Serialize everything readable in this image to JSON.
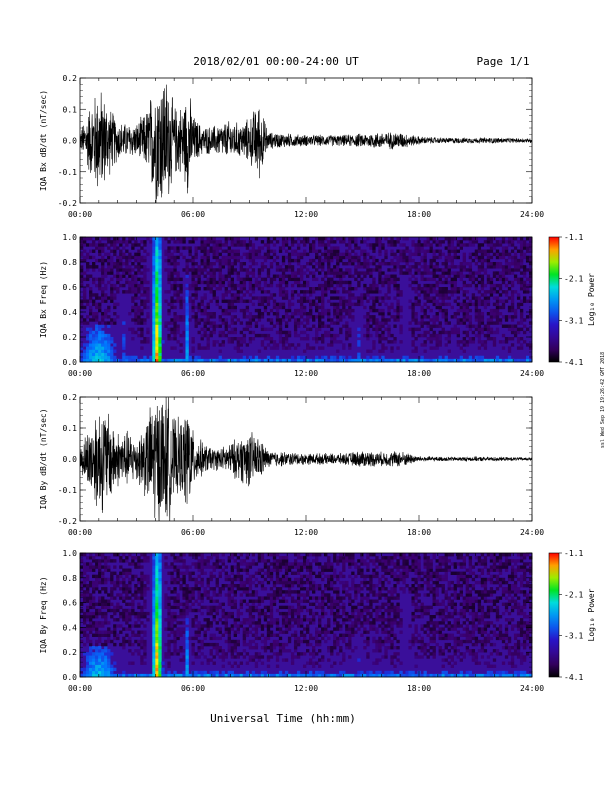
{
  "header": {
    "title": "2018/02/01   00:00-24:00 UT",
    "page": "Page 1/1"
  },
  "footer": {
    "xlabel": "Universal Time (hh:mm)"
  },
  "side_stamp": "ssl Wed Sep 19 19:26:42 GMT 2018",
  "colors": {
    "trace": "#000000",
    "spectrogram_background": "#3a0f9a"
  },
  "chart_data": [
    {
      "type": "line",
      "title": "",
      "ylabel": "IQA Bx dB/dt (nT/sec)",
      "xlabel": "",
      "x_ticks": [
        "00:00",
        "06:00",
        "12:00",
        "18:00",
        "24:00"
      ],
      "y_ticks": [
        "-0.2",
        "-0.1",
        "0.0",
        "0.1",
        "0.2"
      ],
      "xlim": [
        0,
        24
      ],
      "ylim": [
        -0.2,
        0.2
      ],
      "envelope": {
        "x": [
          0,
          0.5,
          1.0,
          1.5,
          2.0,
          2.5,
          3.0,
          3.5,
          4.0,
          4.25,
          4.5,
          4.75,
          5.0,
          5.5,
          5.75,
          6.0,
          6.5,
          7.0,
          7.5,
          8.0,
          8.5,
          9.0,
          9.5,
          10.0,
          11,
          12,
          13,
          14,
          15,
          16,
          17,
          18,
          19,
          20,
          21,
          22,
          23,
          24
        ],
        "amp": [
          0.03,
          0.12,
          0.2,
          0.13,
          0.07,
          0.06,
          0.06,
          0.1,
          0.22,
          0.24,
          0.24,
          0.2,
          0.12,
          0.13,
          0.2,
          0.09,
          0.05,
          0.05,
          0.06,
          0.07,
          0.06,
          0.08,
          0.14,
          0.03,
          0.025,
          0.02,
          0.02,
          0.02,
          0.025,
          0.03,
          0.03,
          0.015,
          0.01,
          0.01,
          0.01,
          0.01,
          0.008,
          0.008
        ]
      }
    },
    {
      "type": "heatmap",
      "title": "",
      "ylabel": "IQA Bx Freq (Hz)",
      "x_ticks": [
        "00:00",
        "06:00",
        "12:00",
        "18:00",
        "24:00"
      ],
      "y_ticks": [
        "0.0",
        "0.2",
        "0.4",
        "0.6",
        "0.8",
        "1.0"
      ],
      "xlim": [
        0,
        24
      ],
      "ylim": [
        0,
        1.0
      ],
      "colorbar": {
        "label": "Log₁₀ Power",
        "ticks": [
          "-1.1",
          "-2.1",
          "-3.1",
          "-4.1"
        ],
        "range": [
          -4.1,
          -1.1
        ]
      },
      "background_log_power": -3.7,
      "enhancements": [
        {
          "t": 4.1,
          "width_h": 0.35,
          "fmax": 1.0,
          "log_power": -1.3
        },
        {
          "t": 5.7,
          "width_h": 0.15,
          "fmax": 0.7,
          "log_power": -2.5
        },
        {
          "t": 1.0,
          "width_h": 1.5,
          "fmax": 0.3,
          "log_power": -2.4
        },
        {
          "t": 2.3,
          "width_h": 0.3,
          "fmax": 0.55,
          "log_power": -2.9
        },
        {
          "t": 14.8,
          "width_h": 0.3,
          "fmax": 0.45,
          "log_power": -3.0
        },
        {
          "t": 17.3,
          "width_h": 0.2,
          "fmax": 0.7,
          "log_power": -3.1
        }
      ]
    },
    {
      "type": "line",
      "title": "",
      "ylabel": "IQA By dB/dt (nT/sec)",
      "x_ticks": [
        "00:00",
        "06:00",
        "12:00",
        "18:00",
        "24:00"
      ],
      "y_ticks": [
        "-0.2",
        "-0.1",
        "0.0",
        "0.1",
        "0.2"
      ],
      "xlim": [
        0,
        24
      ],
      "ylim": [
        -0.2,
        0.2
      ],
      "envelope": {
        "x": [
          0,
          0.5,
          1.0,
          1.5,
          2.0,
          2.5,
          3.0,
          3.5,
          4.0,
          4.25,
          4.5,
          4.75,
          5.0,
          5.5,
          5.75,
          6.0,
          6.5,
          7.0,
          7.5,
          8.0,
          8.5,
          9.0,
          9.5,
          10.0,
          11,
          12,
          13,
          14,
          15,
          16,
          17,
          18,
          19,
          20,
          21,
          22,
          23,
          24
        ],
        "amp": [
          0.04,
          0.12,
          0.2,
          0.17,
          0.1,
          0.1,
          0.08,
          0.14,
          0.24,
          0.24,
          0.24,
          0.22,
          0.14,
          0.14,
          0.22,
          0.1,
          0.06,
          0.04,
          0.04,
          0.06,
          0.08,
          0.1,
          0.08,
          0.03,
          0.025,
          0.02,
          0.02,
          0.02,
          0.03,
          0.025,
          0.03,
          0.01,
          0.008,
          0.008,
          0.008,
          0.008,
          0.006,
          0.006
        ]
      }
    },
    {
      "type": "heatmap",
      "title": "",
      "ylabel": "IQA By Freq (Hz)",
      "x_ticks": [
        "00:00",
        "06:00",
        "12:00",
        "18:00",
        "24:00"
      ],
      "y_ticks": [
        "0.0",
        "0.2",
        "0.4",
        "0.6",
        "0.8",
        "1.0"
      ],
      "xlim": [
        0,
        24
      ],
      "ylim": [
        0,
        1.0
      ],
      "colorbar": {
        "label": "Log₁₀ Power",
        "ticks": [
          "-1.1",
          "-2.1",
          "-3.1",
          "-4.1"
        ],
        "range": [
          -4.1,
          -1.1
        ]
      },
      "background_log_power": -3.7,
      "enhancements": [
        {
          "t": 4.1,
          "width_h": 0.35,
          "fmax": 1.0,
          "log_power": -1.3
        },
        {
          "t": 5.7,
          "width_h": 0.15,
          "fmax": 0.5,
          "log_power": -2.5
        },
        {
          "t": 1.0,
          "width_h": 1.5,
          "fmax": 0.25,
          "log_power": -2.4
        },
        {
          "t": 14.8,
          "width_h": 0.25,
          "fmax": 0.35,
          "log_power": -3.1
        },
        {
          "t": 17.3,
          "width_h": 0.2,
          "fmax": 0.7,
          "log_power": -3.1
        }
      ]
    }
  ]
}
